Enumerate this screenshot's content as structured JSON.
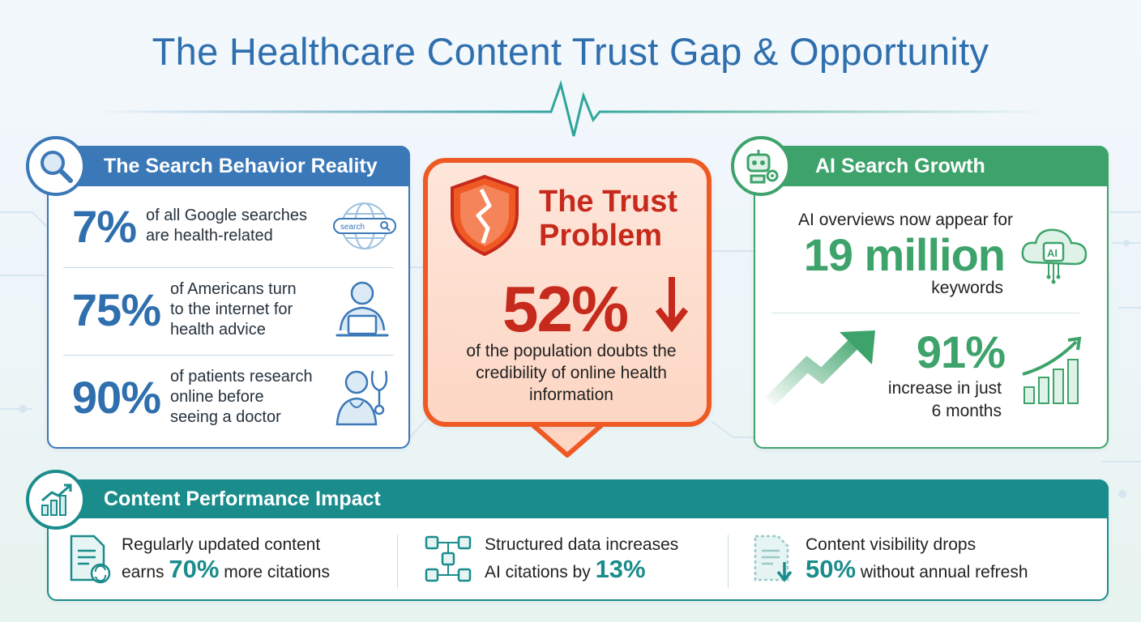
{
  "title": "The Healthcare Content Trust Gap & Opportunity",
  "colors": {
    "blue": "#3b78b8",
    "green": "#3da36b",
    "teal": "#1b8c8c",
    "red": "#c62a1c",
    "orange": "#ef5a24"
  },
  "search_behavior": {
    "header": "The Search Behavior Reality",
    "icon": "magnifier-icon",
    "rows": [
      {
        "big": "7%",
        "text_line1": "of all Google searches",
        "text_line2": "are health-related",
        "text_line3": "",
        "icon": "globe-search-icon",
        "search_label": "search"
      },
      {
        "big": "75%",
        "text_line1": "of Americans turn",
        "text_line2": "to the internet for",
        "text_line3": "health advice",
        "icon": "person-laptop-icon"
      },
      {
        "big": "90%",
        "text_line1": "of patients research",
        "text_line2": "online before",
        "text_line3": "seeing a doctor",
        "icon": "doctor-stethoscope-icon"
      }
    ]
  },
  "trust": {
    "title_line1": "The Trust",
    "title_line2": "Problem",
    "big": "52%",
    "text": "of the population doubts the credibility of online health information",
    "icon": "broken-shield-icon"
  },
  "ai_growth": {
    "header": "AI Search Growth",
    "icon": "robot-gear-icon",
    "line1": "AI overviews now appear for",
    "big1": "19 million",
    "line2": "keywords",
    "cloud_label": "AI",
    "big2": "91%",
    "line3": "increase in just",
    "line4": "6 months"
  },
  "performance": {
    "header": "Content Performance Impact",
    "icon": "growth-chart-icon",
    "items": [
      {
        "line1": "Regularly updated content",
        "pre": "earns ",
        "num": "70%",
        "post": " more citations",
        "icon": "document-refresh-icon"
      },
      {
        "line1": "Structured data increases",
        "pre": "AI citations by ",
        "num": "13%",
        "post": "",
        "icon": "structured-data-icon"
      },
      {
        "line1": "Content visibility drops",
        "pre": "",
        "num": "50%",
        "post": " without annual refresh",
        "icon": "document-down-icon"
      }
    ]
  }
}
